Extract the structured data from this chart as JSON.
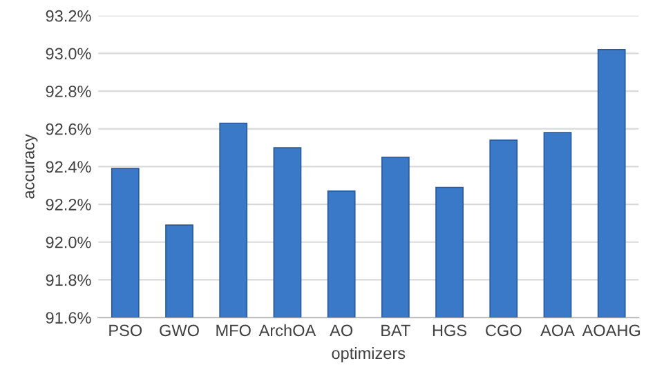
{
  "chart_data": {
    "type": "bar",
    "xlabel": "optimizers",
    "ylabel": "accuracy",
    "categories": [
      "PSO",
      "GWO",
      "MFO",
      "ArchOA",
      "AO",
      "BAT",
      "HGS",
      "CGO",
      "AOA",
      "AOAHG"
    ],
    "values": [
      92.39,
      92.09,
      92.63,
      92.5,
      92.27,
      92.45,
      92.29,
      92.54,
      92.58,
      93.02
    ],
    "color": "#3a78c8",
    "ylim": [
      91.6,
      93.2
    ],
    "yticks": [
      {
        "value": 91.6,
        "label": "91.6%"
      },
      {
        "value": 91.8,
        "label": "91.8%"
      },
      {
        "value": 92.0,
        "label": "92.0%"
      },
      {
        "value": 92.2,
        "label": "92.2%"
      },
      {
        "value": 92.4,
        "label": "92.4%"
      },
      {
        "value": 92.6,
        "label": "92.6%"
      },
      {
        "value": 92.8,
        "label": "92.8%"
      },
      {
        "value": 93.0,
        "label": "93.0%"
      },
      {
        "value": 93.2,
        "label": "93.2%"
      }
    ],
    "grid": "y"
  }
}
